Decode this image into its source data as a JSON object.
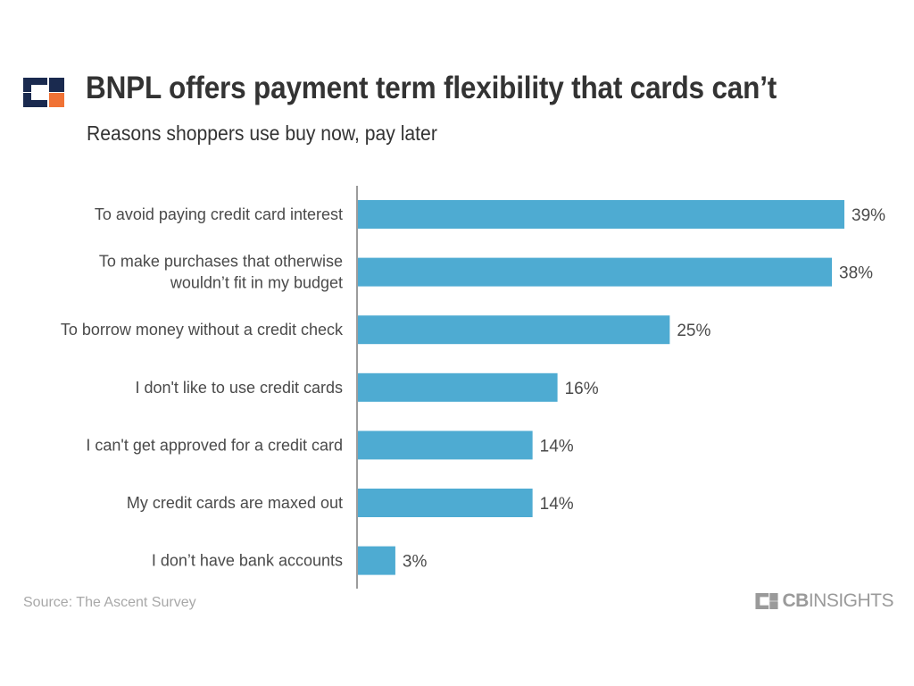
{
  "header": {
    "title": "BNPL offers payment term flexibility that cards can’t",
    "subtitle": "Reasons shoppers use buy now, pay later"
  },
  "footer": {
    "source": "Source: The Ascent Survey",
    "brand_cb": "CB",
    "brand_insights": "INSIGHTS"
  },
  "colors": {
    "bar": "#4eabd2",
    "logo_navy": "#1a2a4f",
    "logo_orange": "#f07235",
    "text": "#333333",
    "muted": "#a8a8a8"
  },
  "chart_data": {
    "type": "bar",
    "orientation": "horizontal",
    "title": "BNPL offers payment term flexibility that cards can’t",
    "subtitle": "Reasons shoppers use buy now, pay later",
    "categories": [
      [
        "To avoid paying credit card interest"
      ],
      [
        "To make purchases that otherwise",
        "wouldn’t fit in my budget"
      ],
      [
        "To borrow money without a credit check"
      ],
      [
        "I don't like to use credit cards"
      ],
      [
        "I can't get approved for a credit card"
      ],
      [
        "My credit cards are maxed out"
      ],
      [
        "I don’t have bank accounts"
      ]
    ],
    "values": [
      39,
      38,
      25,
      16,
      14,
      14,
      3
    ],
    "value_labels": [
      "39%",
      "38%",
      "25%",
      "16%",
      "14%",
      "14%",
      "3%"
    ],
    "unit": "%",
    "xlim": [
      0,
      39
    ],
    "grid": false,
    "legend": "none"
  }
}
